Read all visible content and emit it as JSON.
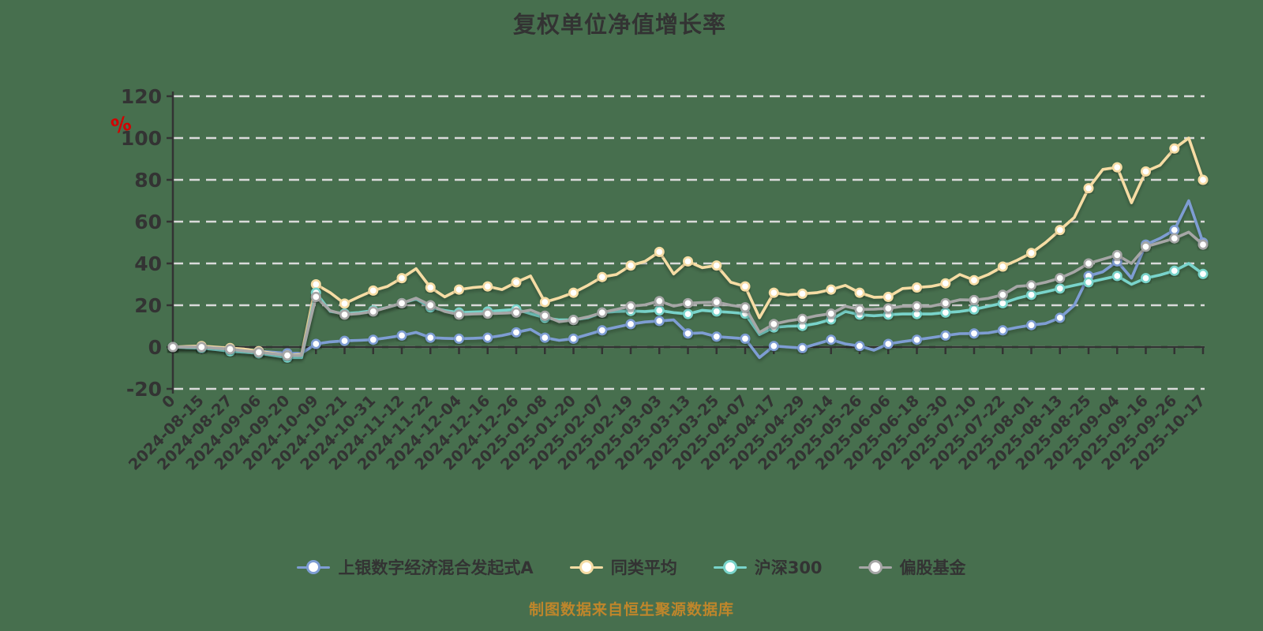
{
  "title": "复权单位净值增长率",
  "footer": "制图数据来自恒生聚源数据库",
  "colors": {
    "background": "#476F4E",
    "text": "#333333",
    "grid": "#DADADA",
    "axis": "#333333",
    "unit_label": "#D40000",
    "footer_text": "#BF862B",
    "marker_fill": "#FFFFFF"
  },
  "y_axis": {
    "unit": "%",
    "ticks": [
      120,
      100,
      80,
      60,
      40,
      20,
      0,
      -20
    ],
    "min": -20,
    "max": 120
  },
  "x_axis": {
    "labels": [
      "0",
      "2024-08-15",
      "2024-08-27",
      "2024-09-06",
      "2024-09-20",
      "2024-10-09",
      "2024-10-21",
      "2024-10-31",
      "2024-11-12",
      "2024-11-22",
      "2024-12-04",
      "2024-12-16",
      "2024-12-26",
      "2025-01-08",
      "2025-01-20",
      "2025-02-07",
      "2025-02-19",
      "2025-03-03",
      "2025-03-13",
      "2025-03-25",
      "2025-04-07",
      "2025-04-17",
      "2025-04-29",
      "2025-05-14",
      "2025-05-26",
      "2025-06-06",
      "2025-06-18",
      "2025-06-30",
      "2025-07-10",
      "2025-07-22",
      "2025-08-01",
      "2025-08-13",
      "2025-08-25",
      "2025-09-04",
      "2025-09-16",
      "2025-09-26",
      "2025-10-17"
    ]
  },
  "legend": [
    {
      "label": "上银数字经济混合发起式A",
      "color": "#7E9DD3"
    },
    {
      "label": "同类平均",
      "color": "#F6DCA4"
    },
    {
      "label": "沪深300",
      "color": "#79D4CB"
    },
    {
      "label": "偏股基金",
      "color": "#A6A6A6"
    }
  ],
  "chart_data": {
    "type": "line",
    "title": "复权单位净值增长率",
    "ylabel": "%",
    "ylim": [
      -20,
      120
    ],
    "grid": "dashed-horizontal",
    "legend_position": "bottom",
    "categories": [
      "0",
      "2024-08-15",
      "2024-08-27",
      "2024-09-06",
      "2024-09-20",
      "2024-10-09",
      "2024-10-21",
      "2024-10-31",
      "2024-11-12",
      "2024-11-22",
      "2024-12-04",
      "2024-12-16",
      "2024-12-26",
      "2025-01-08",
      "2025-01-20",
      "2025-02-07",
      "2025-02-19",
      "2025-03-03",
      "2025-03-13",
      "2025-03-25",
      "2025-04-07",
      "2025-04-17",
      "2025-04-29",
      "2025-05-14",
      "2025-05-26",
      "2025-06-06",
      "2025-06-18",
      "2025-06-30",
      "2025-07-10",
      "2025-07-22",
      "2025-08-01",
      "2025-08-13",
      "2025-08-25",
      "2025-09-04",
      "2025-09-16",
      "2025-09-26",
      "2025-10-17"
    ],
    "points_per_category": 2,
    "note": "values sampled at each category tick and at the midpoint between ticks (73 points per series), unit %",
    "series": [
      {
        "name": "上银数字经济混合发起式A",
        "color": "#7E9DD3",
        "values": [
          0,
          0,
          0,
          -0.5,
          -1,
          -1.5,
          -2,
          -2.5,
          -3,
          -3,
          1.5,
          2.5,
          3,
          3.2,
          3.5,
          4.5,
          5.5,
          7,
          4.5,
          4.2,
          4,
          4.2,
          4.5,
          5.5,
          7,
          8.5,
          4.5,
          3.2,
          4,
          6,
          8,
          9.5,
          11,
          12,
          12.5,
          13,
          6.5,
          6.8,
          5,
          4.5,
          4,
          -5,
          0.5,
          0,
          -0.5,
          1.5,
          3.5,
          1.5,
          0.5,
          -1.5,
          1.5,
          2.6,
          3.5,
          4.5,
          5.5,
          6.4,
          6.5,
          6.8,
          8,
          9.4,
          10.5,
          11.3,
          14,
          20,
          34,
          36,
          41,
          33,
          49,
          52,
          56,
          70,
          50
        ]
      },
      {
        "name": "同类平均",
        "color": "#F6DCA4",
        "values": [
          0,
          0.3,
          0.5,
          0,
          -0.5,
          -1,
          -2,
          -3,
          -4,
          -3.5,
          30,
          26,
          20.8,
          24,
          27,
          29,
          33,
          37.5,
          28.5,
          24,
          27.5,
          28.5,
          29,
          27.5,
          31,
          34,
          21.5,
          23.5,
          26,
          29.5,
          33.5,
          34.7,
          39,
          41,
          45.5,
          35,
          41,
          38,
          39,
          31,
          29,
          14,
          26,
          25,
          25.5,
          26,
          27.5,
          29.5,
          26,
          23.8,
          24,
          28,
          28.5,
          29,
          30.5,
          34.7,
          32,
          34.7,
          38.5,
          41.5,
          45,
          50,
          56,
          62,
          76,
          85,
          86,
          69,
          84,
          87,
          95,
          100,
          80
        ]
      },
      {
        "name": "沪深300",
        "color": "#79D4CB",
        "values": [
          0,
          -0.3,
          -0.5,
          -1.2,
          -2,
          -2.5,
          -3,
          -4,
          -5,
          -5,
          26,
          17,
          16,
          16.5,
          17.5,
          19,
          21,
          23,
          19,
          17.5,
          16.5,
          16.8,
          17,
          17.5,
          18,
          16,
          14,
          13,
          13,
          14,
          16.5,
          17,
          17.3,
          17,
          17.5,
          16.5,
          15.8,
          17.6,
          17,
          16.6,
          16,
          6,
          9.4,
          10,
          10.1,
          11.3,
          13.2,
          17,
          15.5,
          15,
          15.5,
          15.8,
          15.8,
          15.8,
          16.5,
          17,
          18,
          19.5,
          21,
          23.3,
          25,
          26.4,
          28,
          29.5,
          31,
          32.5,
          34,
          30,
          33,
          34.5,
          36.5,
          40,
          35
        ]
      },
      {
        "name": "偏股基金",
        "color": "#A6A6A6",
        "values": [
          0,
          0,
          0,
          -0.5,
          -1,
          -1.8,
          -2.5,
          -3.2,
          -4,
          -4,
          24,
          17.4,
          15.5,
          16,
          17,
          19,
          21,
          23.4,
          20,
          17,
          15.5,
          15.8,
          16,
          16.2,
          16.5,
          17.7,
          15,
          12.1,
          13,
          14.4,
          16.5,
          18,
          19.5,
          20.2,
          22,
          19.6,
          21,
          21.3,
          21.5,
          20,
          19,
          7,
          11,
          12.5,
          13.5,
          15,
          16,
          19.5,
          18,
          18.1,
          18.5,
          19.5,
          19.5,
          19.5,
          21,
          22.6,
          22.5,
          23.3,
          25,
          29,
          29.5,
          31,
          33,
          36,
          40,
          42,
          44,
          40,
          48,
          50,
          52,
          55,
          49
        ]
      }
    ]
  }
}
